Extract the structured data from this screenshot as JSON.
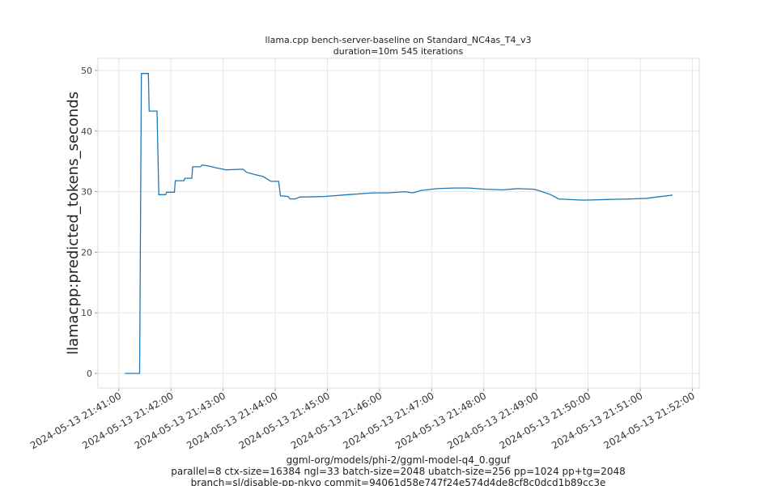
{
  "chart_data": {
    "type": "line",
    "title": [
      "llama.cpp bench-server-baseline on Standard_NC4as_T4_v3",
      "duration=10m 545 iterations"
    ],
    "ylabel": "llamacpp:predicted_tokens_seconds",
    "xlabel": [
      "ggml-org/models/phi-2/ggml-model-q4_0.gguf",
      "parallel=8 ctx-size=16384 ngl=33 batch-size=2048 ubatch-size=256 pp=1024 pp+tg=2048",
      "branch=sl/disable-pp-nkvo commit=94061d58e747f24e574d4de8cf8c0dcd1b89cc3e"
    ],
    "x": [
      "2024-05-13 21:41:07",
      "2024-05-13 21:41:24",
      "2024-05-13 21:41:26",
      "2024-05-13 21:41:34",
      "2024-05-13 21:41:35",
      "2024-05-13 21:41:44",
      "2024-05-13 21:41:46",
      "2024-05-13 21:41:54",
      "2024-05-13 21:41:55",
      "2024-05-13 21:42:04",
      "2024-05-13 21:42:05",
      "2024-05-13 21:42:15",
      "2024-05-13 21:42:16",
      "2024-05-13 21:42:24",
      "2024-05-13 21:42:25",
      "2024-05-13 21:42:34",
      "2024-05-13 21:42:36",
      "2024-05-13 21:42:45",
      "2024-05-13 21:42:50",
      "2024-05-13 21:43:04",
      "2024-05-13 21:43:23",
      "2024-05-13 21:43:27",
      "2024-05-13 21:43:37",
      "2024-05-13 21:43:46",
      "2024-05-13 21:43:55",
      "2024-05-13 21:44:04",
      "2024-05-13 21:44:06",
      "2024-05-13 21:44:15",
      "2024-05-13 21:44:17",
      "2024-05-13 21:44:23",
      "2024-05-13 21:44:28",
      "2024-05-13 21:44:56",
      "2024-05-13 21:45:24",
      "2024-05-13 21:45:52",
      "2024-05-13 21:46:10",
      "2024-05-13 21:46:29",
      "2024-05-13 21:46:38",
      "2024-05-13 21:46:48",
      "2024-05-13 21:47:06",
      "2024-05-13 21:47:25",
      "2024-05-13 21:47:43",
      "2024-05-13 21:48:02",
      "2024-05-13 21:48:21",
      "2024-05-13 21:48:39",
      "2024-05-13 21:48:58",
      "2024-05-13 21:49:07",
      "2024-05-13 21:49:17",
      "2024-05-13 21:49:26",
      "2024-05-13 21:49:54",
      "2024-05-13 21:50:22",
      "2024-05-13 21:50:50",
      "2024-05-13 21:51:08",
      "2024-05-13 21:51:18",
      "2024-05-13 21:51:36",
      "2024-05-13 21:51:37"
    ],
    "series": [
      {
        "color": "#1f77b4",
        "values": [
          0,
          0,
          49.5,
          49.5,
          43.3,
          43.3,
          29.5,
          29.5,
          29.9,
          29.9,
          31.8,
          31.8,
          32.2,
          32.2,
          34.1,
          34.1,
          34.4,
          34.2,
          34.0,
          33.6,
          33.7,
          33.2,
          32.8,
          32.5,
          31.7,
          31.7,
          29.3,
          29.2,
          28.8,
          28.8,
          29.1,
          29.2,
          29.5,
          29.8,
          29.8,
          30.0,
          29.8,
          30.2,
          30.5,
          30.6,
          30.6,
          30.4,
          30.3,
          30.5,
          30.4,
          30.0,
          29.5,
          28.8,
          28.6,
          28.7,
          28.8,
          28.9,
          29.1,
          29.4,
          29.5
        ]
      }
    ],
    "xlim": [
      "2024-05-13 21:40:36",
      "2024-05-13 21:52:08"
    ],
    "xticks": [
      "2024-05-13 21:41:00",
      "2024-05-13 21:42:00",
      "2024-05-13 21:43:00",
      "2024-05-13 21:44:00",
      "2024-05-13 21:45:00",
      "2024-05-13 21:46:00",
      "2024-05-13 21:47:00",
      "2024-05-13 21:48:00",
      "2024-05-13 21:49:00",
      "2024-05-13 21:50:00",
      "2024-05-13 21:51:00",
      "2024-05-13 21:52:00"
    ],
    "ylim": [
      -2.4,
      52
    ],
    "yticks": [
      0,
      10,
      20,
      30,
      40,
      50
    ],
    "grid": true
  }
}
